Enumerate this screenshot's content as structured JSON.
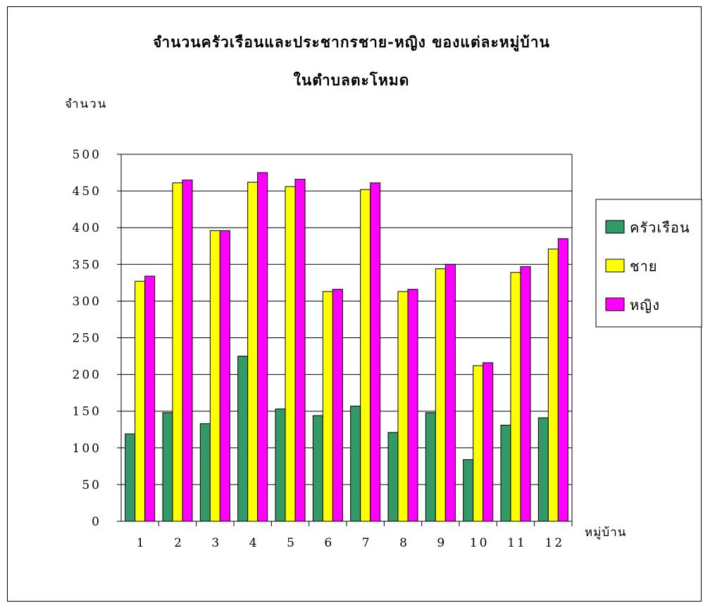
{
  "chart_data": {
    "type": "bar",
    "title": "จำนวนครัวเรือนและประชากรชาย-หญิง  ของแต่ละหมู่บ้าน",
    "subtitle": "ในตำบลตะโหมด",
    "ylabel": "จำนวน",
    "xlabel": "หมู่บ้าน",
    "ylim": [
      0,
      500
    ],
    "yticks": [
      "0",
      "50",
      "100",
      "150",
      "200",
      "250",
      "300",
      "350",
      "400",
      "450",
      "500"
    ],
    "grid": true,
    "legend_position": "right",
    "categories": [
      "1",
      "2",
      "3",
      "4",
      "5",
      "6",
      "7",
      "8",
      "9",
      "10",
      "11",
      "12"
    ],
    "series": [
      {
        "name": "ครัวเรือน",
        "color": "#339966",
        "values": [
          119,
          148,
          133,
          225,
          153,
          144,
          157,
          121,
          148,
          84,
          131,
          141
        ]
      },
      {
        "name": "ชาย",
        "color": "#ffff00",
        "values": [
          327,
          461,
          396,
          462,
          456,
          313,
          452,
          313,
          344,
          212,
          339,
          371
        ]
      },
      {
        "name": "หญิง",
        "color": "#ff00ff",
        "values": [
          334,
          465,
          396,
          475,
          466,
          316,
          461,
          316,
          350,
          216,
          347,
          385
        ]
      }
    ]
  }
}
